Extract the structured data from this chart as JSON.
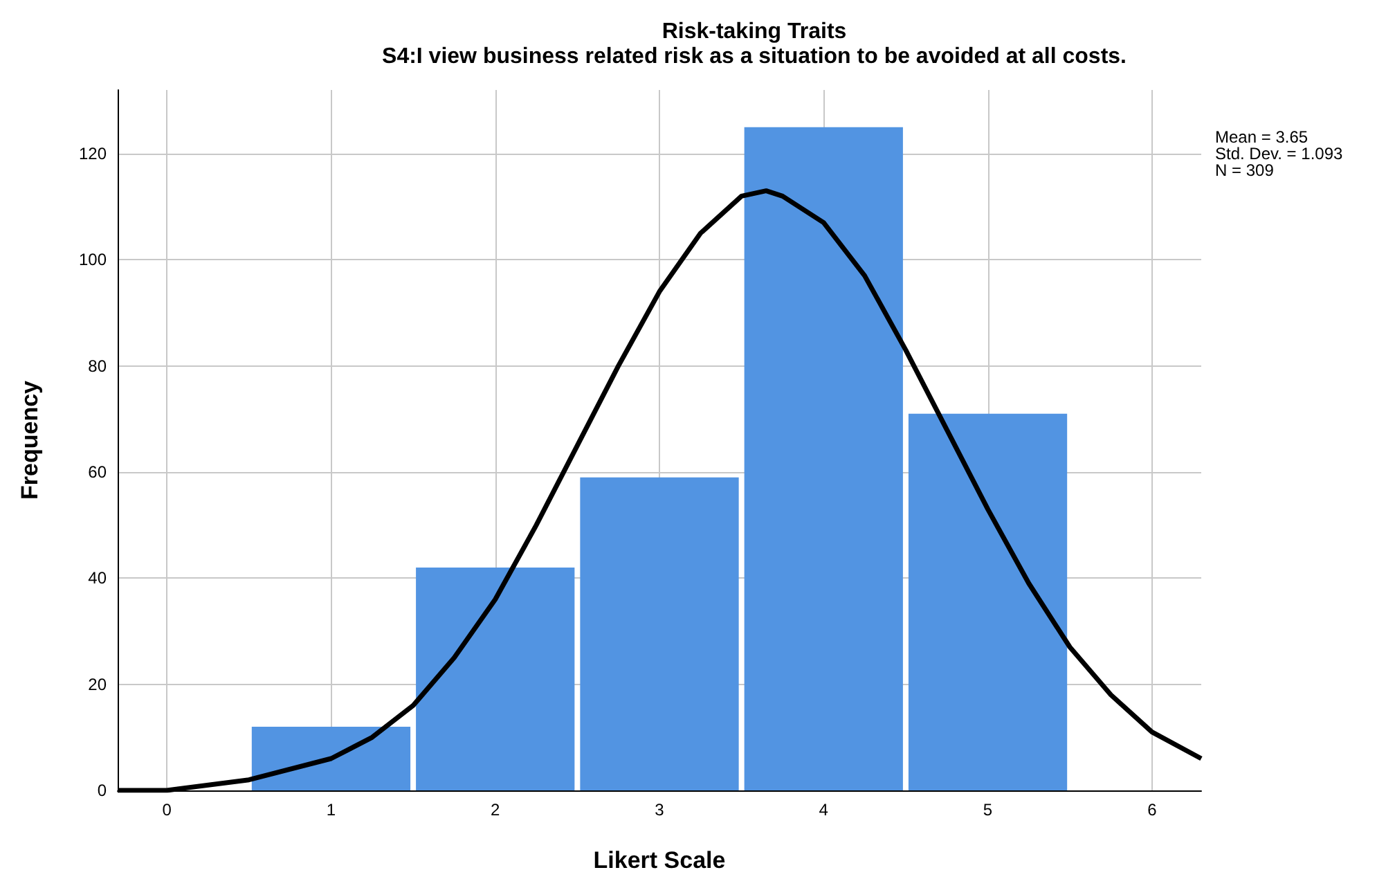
{
  "chart_data": {
    "type": "histogram",
    "title": "Risk-taking Traits",
    "subtitle": "S4:I view business related risk as a situation to be avoided at all costs.",
    "xlabel": "Likert Scale",
    "ylabel": "Frequency",
    "bins": [
      0.5,
      1.5,
      2.5,
      3.5,
      4.5,
      5.5
    ],
    "values": [
      12,
      42,
      59,
      125,
      71
    ],
    "color": "#5294e2",
    "series": [
      {
        "type": "line",
        "color": "#000000",
        "x": [
          -0.3,
          0,
          0.5,
          1,
          1.25,
          1.5,
          1.75,
          2,
          2.25,
          2.5,
          2.75,
          3,
          3.25,
          3.5,
          3.65,
          3.75,
          4,
          4.25,
          4.5,
          4.75,
          5,
          5.25,
          5.5,
          5.75,
          6,
          6.3
        ],
        "values": [
          0,
          0,
          2,
          6,
          10,
          16,
          25,
          36,
          50,
          65,
          80,
          94,
          105,
          112,
          113,
          112,
          107,
          97,
          83,
          68,
          53,
          39,
          27,
          18,
          11,
          6
        ]
      }
    ],
    "marker": "none",
    "line_style": "solid",
    "xlim": [
      -0.3,
      6.3
    ],
    "xticks": [
      0,
      1,
      2,
      3,
      4,
      5,
      6
    ],
    "ylim": [
      0,
      132
    ],
    "yticks": [
      0,
      20,
      40,
      60,
      80,
      100,
      120
    ],
    "grid": true,
    "annotations": [
      "Mean = 3.65",
      "Std. Dev. = 1.093",
      "N = 309"
    ]
  }
}
